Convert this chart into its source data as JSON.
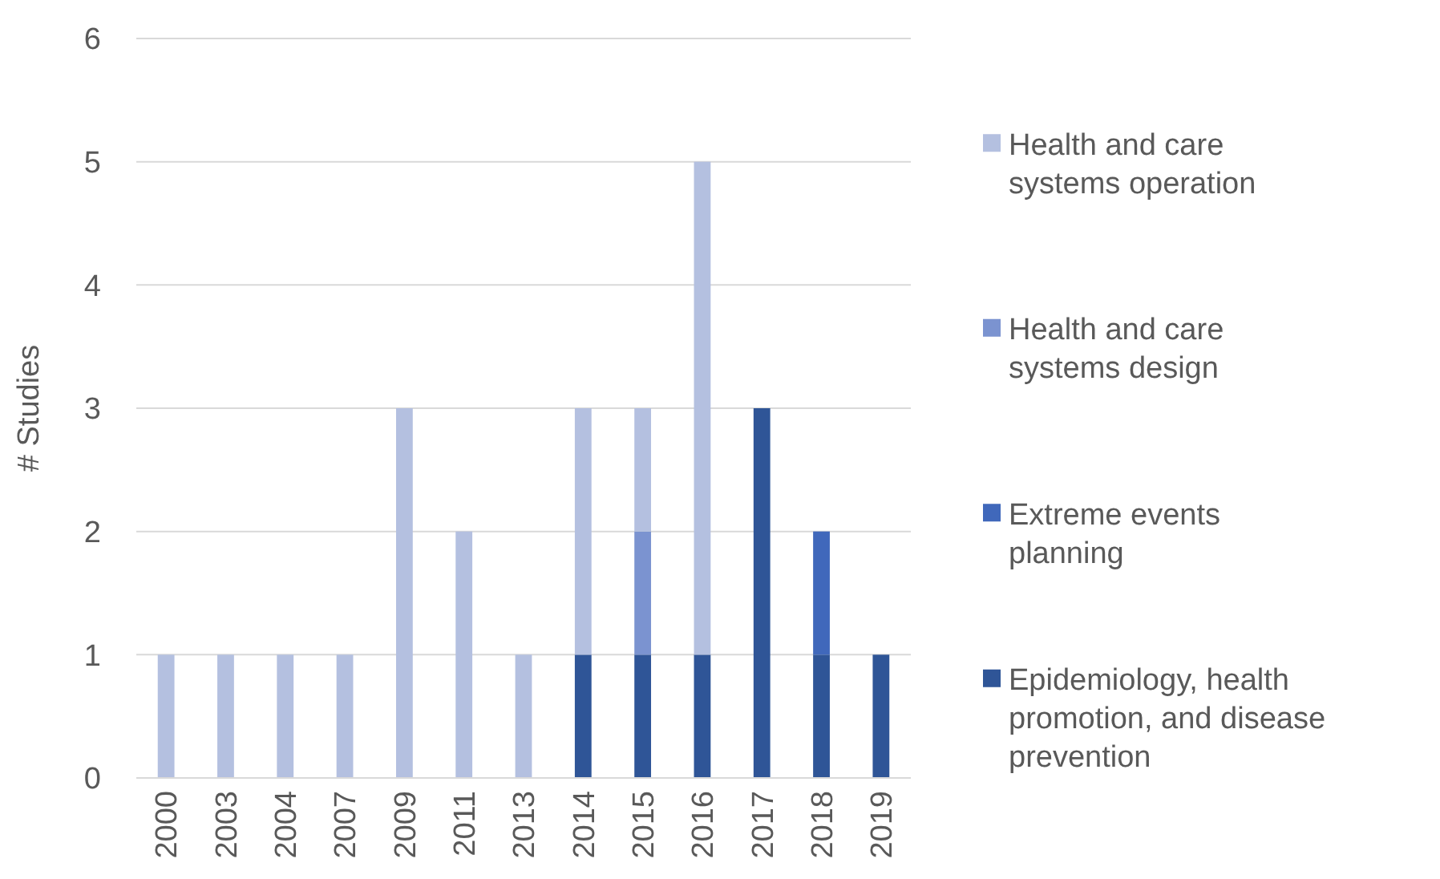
{
  "chart_data": {
    "type": "bar",
    "stacked": true,
    "ylabel": "# Studies",
    "categories": [
      "2000",
      "2003",
      "2004",
      "2007",
      "2009",
      "2011",
      "2013",
      "2014",
      "2015",
      "2016",
      "2017",
      "2018",
      "2019"
    ],
    "series": [
      {
        "name": "Epidemiology, health promotion, and disease prevention",
        "color": "#2f5597",
        "values": [
          0,
          0,
          0,
          0,
          0,
          0,
          0,
          1,
          1,
          1,
          3,
          1,
          1
        ]
      },
      {
        "name": "Extreme events planning",
        "color": "#4068bb",
        "values": [
          0,
          0,
          0,
          0,
          0,
          0,
          0,
          0,
          0,
          0,
          0,
          1,
          0
        ]
      },
      {
        "name": "Health and care systems design",
        "color": "#7b93d0",
        "values": [
          0,
          0,
          0,
          0,
          0,
          0,
          0,
          0,
          1,
          0,
          0,
          0,
          0
        ]
      },
      {
        "name": "Health and care systems operation",
        "color": "#b4c0e0",
        "values": [
          1,
          1,
          1,
          1,
          3,
          2,
          1,
          2,
          1,
          4,
          0,
          0,
          0
        ]
      }
    ],
    "ylim": [
      0,
      6
    ],
    "yticks": [
      0,
      1,
      2,
      3,
      4,
      5,
      6
    ],
    "grid": "y",
    "legend": "right"
  }
}
